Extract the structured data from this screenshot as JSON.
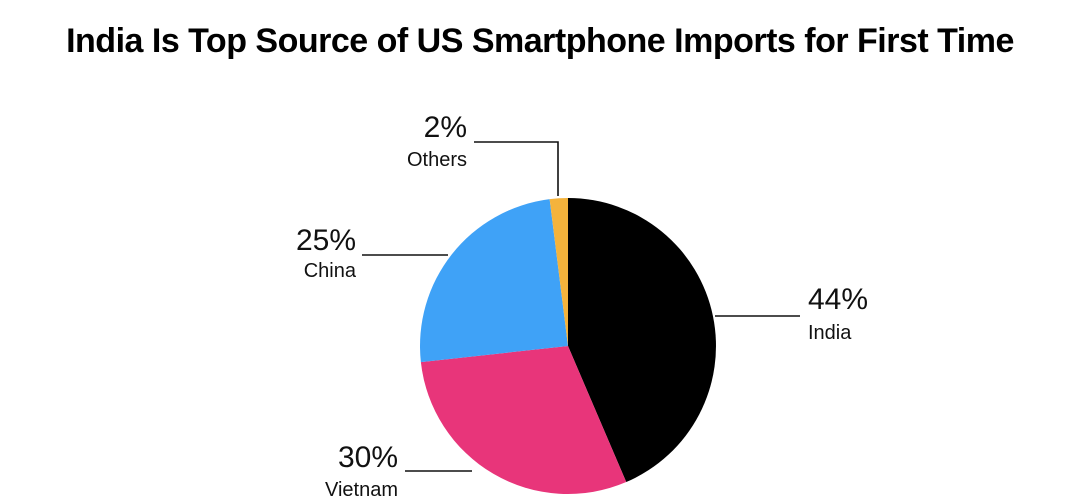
{
  "chart_data": {
    "type": "pie",
    "title": "India Is Top Source of US Smartphone Imports for First Time",
    "slices": [
      {
        "name": "India",
        "value": 44,
        "label": "44%",
        "color": "#000000"
      },
      {
        "name": "Vietnam",
        "value": 30,
        "label": "30%",
        "color": "#e8357a"
      },
      {
        "name": "China",
        "value": 25,
        "label": "25%",
        "color": "#3fa2f7"
      },
      {
        "name": "Others",
        "value": 2,
        "label": "2%",
        "color": "#f4b33c"
      }
    ],
    "start": "12 o'clock",
    "direction": "clockwise",
    "legend": "none",
    "label_style": "leader-lines"
  }
}
